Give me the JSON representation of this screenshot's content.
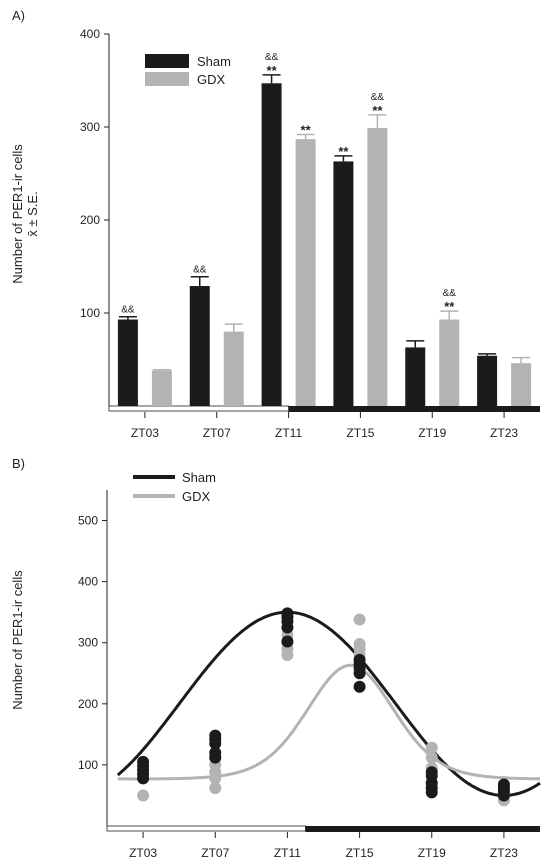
{
  "colors": {
    "sham": "#1b1b1b",
    "gdx": "#b3b3b1",
    "axis": "#231f20",
    "light_bar": "#ffffff",
    "dark_bar": "#1b1b1b"
  },
  "chart_data": [
    {
      "type": "bar",
      "panel_label": "A)",
      "categories": [
        "ZT03",
        "ZT07",
        "ZT11",
        "ZT15",
        "ZT19",
        "ZT23"
      ],
      "ylabel_line1": "Number of PER1-ir cells",
      "ylabel_line2": "x̄ ± S.E.",
      "ylim": [
        0,
        400
      ],
      "y_ticks": [
        100,
        200,
        300,
        400
      ],
      "legend_position": "top-left",
      "series": [
        {
          "name": "Sham",
          "values": [
            93,
            129,
            347,
            263,
            63,
            54
          ],
          "errors": [
            3,
            10,
            9,
            6,
            7,
            2
          ],
          "annotations": [
            "&&",
            "&&",
            "&&\n**",
            "**",
            "",
            ""
          ]
        },
        {
          "name": "GDX",
          "values": [
            38,
            80,
            287,
            299,
            93,
            46
          ],
          "errors": [
            1,
            8,
            5,
            14,
            9,
            6
          ],
          "annotations": [
            "",
            "",
            "**",
            "&&\n**",
            "&&\n**",
            ""
          ]
        }
      ],
      "light_dark": {
        "dark_start_category_index": 2.5
      }
    },
    {
      "type": "scatter",
      "panel_label": "B)",
      "categories": [
        "ZT03",
        "ZT07",
        "ZT11",
        "ZT15",
        "ZT19",
        "ZT23"
      ],
      "ylabel": "Number of PER1-ir cells",
      "ylim": [
        0,
        550
      ],
      "y_ticks": [
        100,
        200,
        300,
        400,
        500
      ],
      "legend_position": "top-left",
      "series": [
        {
          "name": "Sham",
          "points": [
            [
              3,
              78
            ],
            [
              3,
              85
            ],
            [
              3,
              92
            ],
            [
              3,
              98
            ],
            [
              3,
              105
            ],
            [
              7,
              112
            ],
            [
              7,
              120
            ],
            [
              7,
              135
            ],
            [
              7,
              142
            ],
            [
              7,
              148
            ],
            [
              11,
              302
            ],
            [
              11,
              325
            ],
            [
              11,
              335
            ],
            [
              11,
              342
            ],
            [
              11,
              348
            ],
            [
              15,
              228
            ],
            [
              15,
              250
            ],
            [
              15,
              258
            ],
            [
              15,
              265
            ],
            [
              15,
              272
            ],
            [
              19,
              55
            ],
            [
              19,
              62
            ],
            [
              19,
              70
            ],
            [
              19,
              82
            ],
            [
              19,
              88
            ],
            [
              23,
              50
            ],
            [
              23,
              56
            ],
            [
              23,
              62
            ],
            [
              23,
              68
            ]
          ],
          "curve": {
            "mesor": 200,
            "amplitude": 150,
            "peak_zt": 11
          }
        },
        {
          "name": "GDX",
          "points": [
            [
              3,
              50
            ],
            [
              7,
              62
            ],
            [
              7,
              78
            ],
            [
              7,
              88
            ],
            [
              7,
              100
            ],
            [
              11,
              280
            ],
            [
              11,
              290
            ],
            [
              11,
              300
            ],
            [
              11,
              312
            ],
            [
              15,
              258
            ],
            [
              15,
              270
            ],
            [
              15,
              280
            ],
            [
              15,
              290
            ],
            [
              15,
              298
            ],
            [
              15,
              338
            ],
            [
              19,
              72
            ],
            [
              19,
              95
            ],
            [
              19,
              112
            ],
            [
              19,
              128
            ],
            [
              23,
              42
            ],
            [
              23,
              50
            ],
            [
              23,
              58
            ]
          ],
          "curve": {
            "mesor": 187,
            "amplitude": 150,
            "peak_zt": 14.5,
            "steepness": 2.6
          }
        }
      ],
      "light_dark": {
        "dark_start_zt": 12
      }
    }
  ]
}
